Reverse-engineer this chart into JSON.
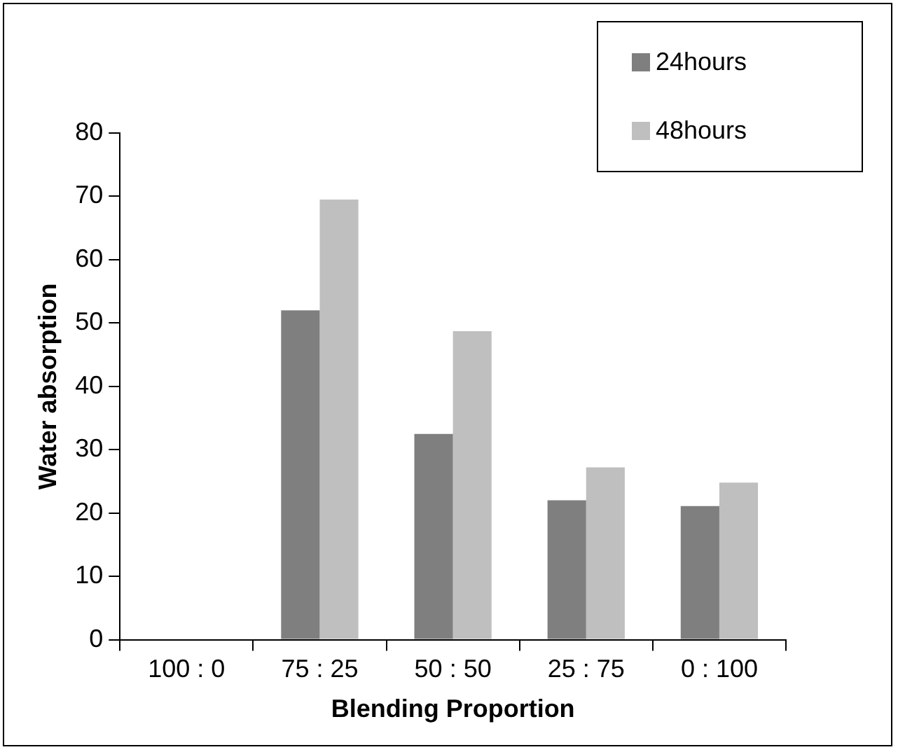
{
  "chart_data": {
    "type": "bar",
    "xlabel": "Blending Proportion",
    "ylabel": "Water absorption",
    "categories": [
      "100 : 0",
      "75 : 25",
      "50 : 50",
      "25 : 75",
      "0 : 100"
    ],
    "series": [
      {
        "name": "24hours",
        "color": "#7f7f7f",
        "values": [
          null,
          52,
          32.5,
          22,
          21.1
        ]
      },
      {
        "name": "48hours",
        "color": "#bfbfbf",
        "values": [
          null,
          69.5,
          48.7,
          27.2,
          24.8
        ]
      }
    ],
    "ylim": [
      0,
      80
    ],
    "yticks": [
      0,
      10,
      20,
      30,
      40,
      50,
      60,
      70,
      80
    ],
    "grid": false,
    "legend": "top right"
  }
}
